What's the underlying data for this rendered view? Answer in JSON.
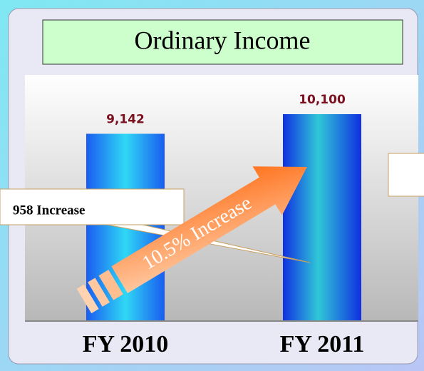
{
  "chart_data": {
    "type": "bar",
    "title": "Ordinary Income",
    "categories": [
      "FY 2010",
      "FY 2011"
    ],
    "values": [
      9142,
      10100
    ],
    "value_labels": [
      "9,142",
      "10,100"
    ],
    "annotations": [
      "958 Increase",
      "10.5% Increase"
    ]
  }
}
